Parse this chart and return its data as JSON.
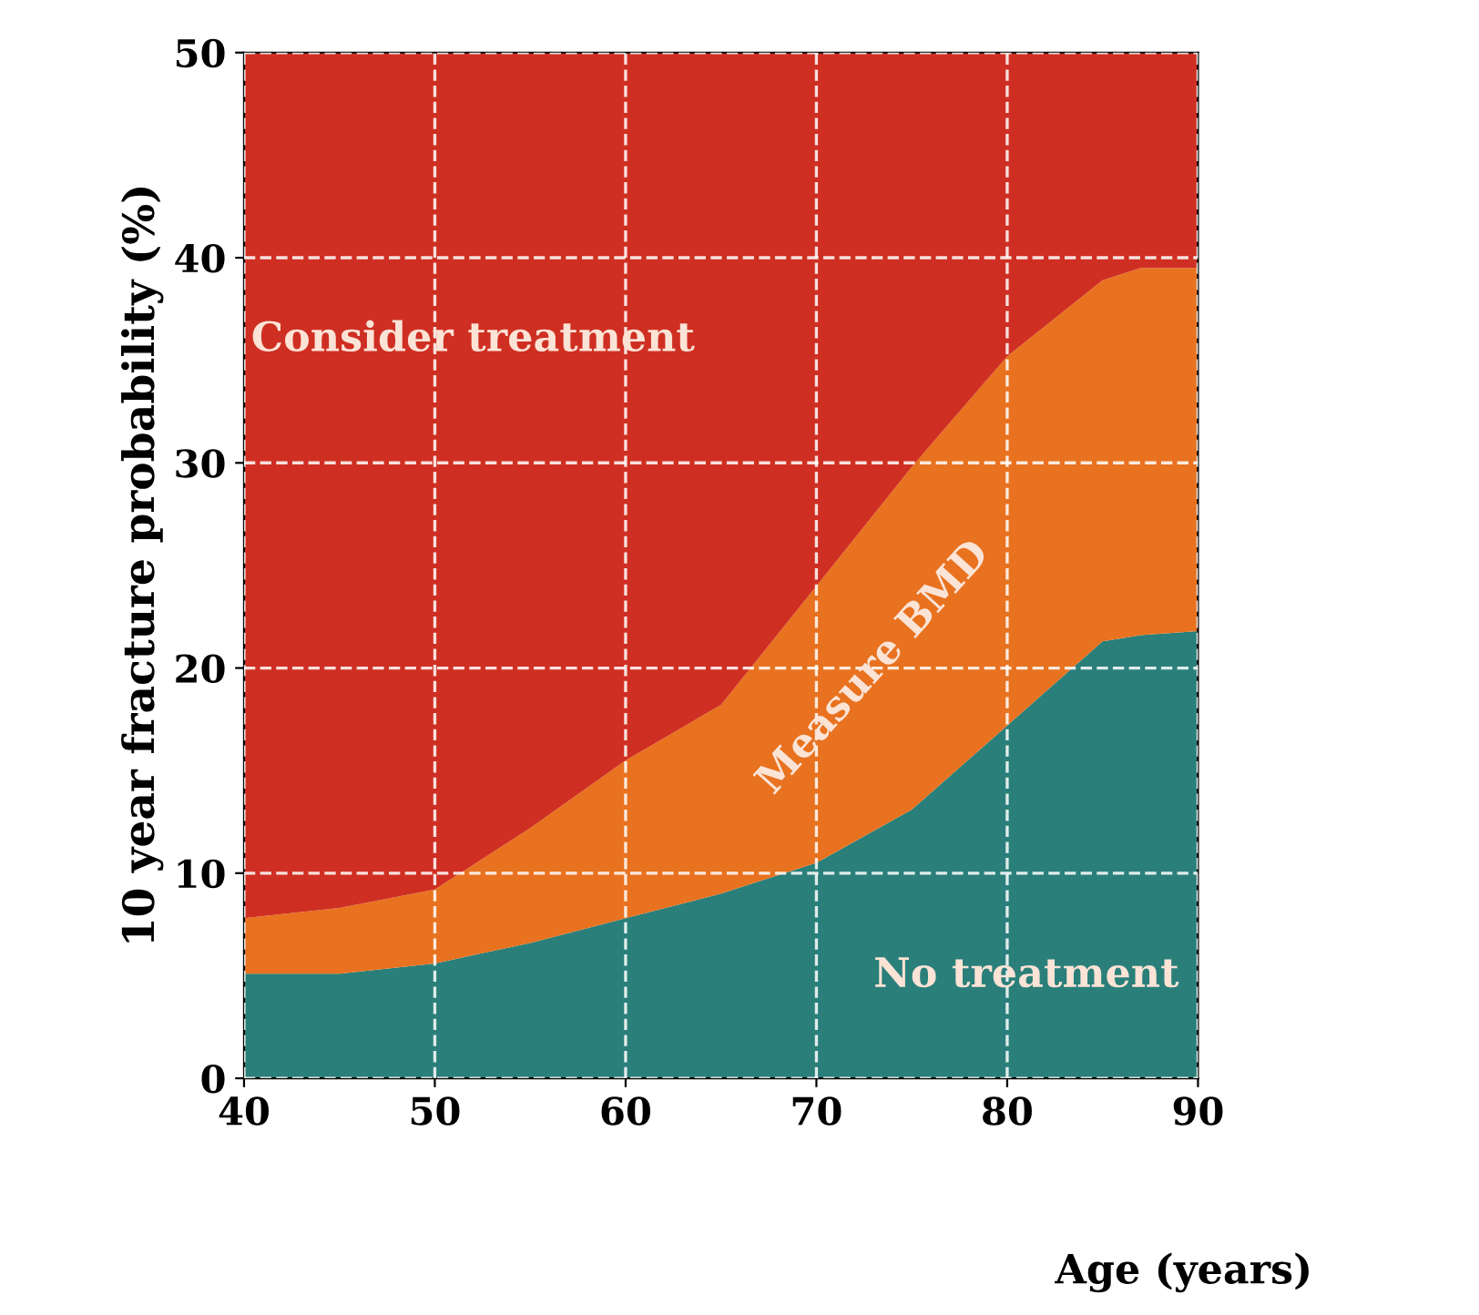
{
  "chart_data": {
    "type": "area",
    "stacked": true,
    "xlabel": "Age (years)",
    "ylabel": "10 year fracture probability (%)",
    "x": [
      40,
      45,
      50,
      55,
      60,
      65,
      70,
      75,
      80,
      85,
      87,
      90
    ],
    "series": [
      {
        "color": "#2a7f7a",
        "values": [
          5.1,
          5.1,
          5.6,
          6.6,
          7.8,
          9.0,
          10.5,
          13.1,
          17.2,
          21.3,
          21.6,
          21.8
        ]
      },
      {
        "color": "#e8721f",
        "values": [
          2.7,
          3.2,
          3.6,
          5.6,
          7.7,
          9.2,
          13.5,
          16.7,
          18.0,
          17.6,
          17.9,
          17.7
        ]
      },
      {
        "color": "#cf2f22",
        "values": [
          42.2,
          41.7,
          40.8,
          37.8,
          34.5,
          31.8,
          26.0,
          20.2,
          14.8,
          11.1,
          10.5,
          10.5
        ]
      }
    ],
    "annotations": [
      "Consider treatment",
      "Measure BMD",
      "No treatment"
    ],
    "xlim": [
      40,
      90
    ],
    "ylim": [
      0,
      50
    ],
    "xticks": [
      40,
      50,
      60,
      70,
      80,
      90
    ],
    "yticks": [
      0,
      10,
      20,
      30,
      40,
      50
    ],
    "grid": true,
    "line_style": "dashed"
  }
}
